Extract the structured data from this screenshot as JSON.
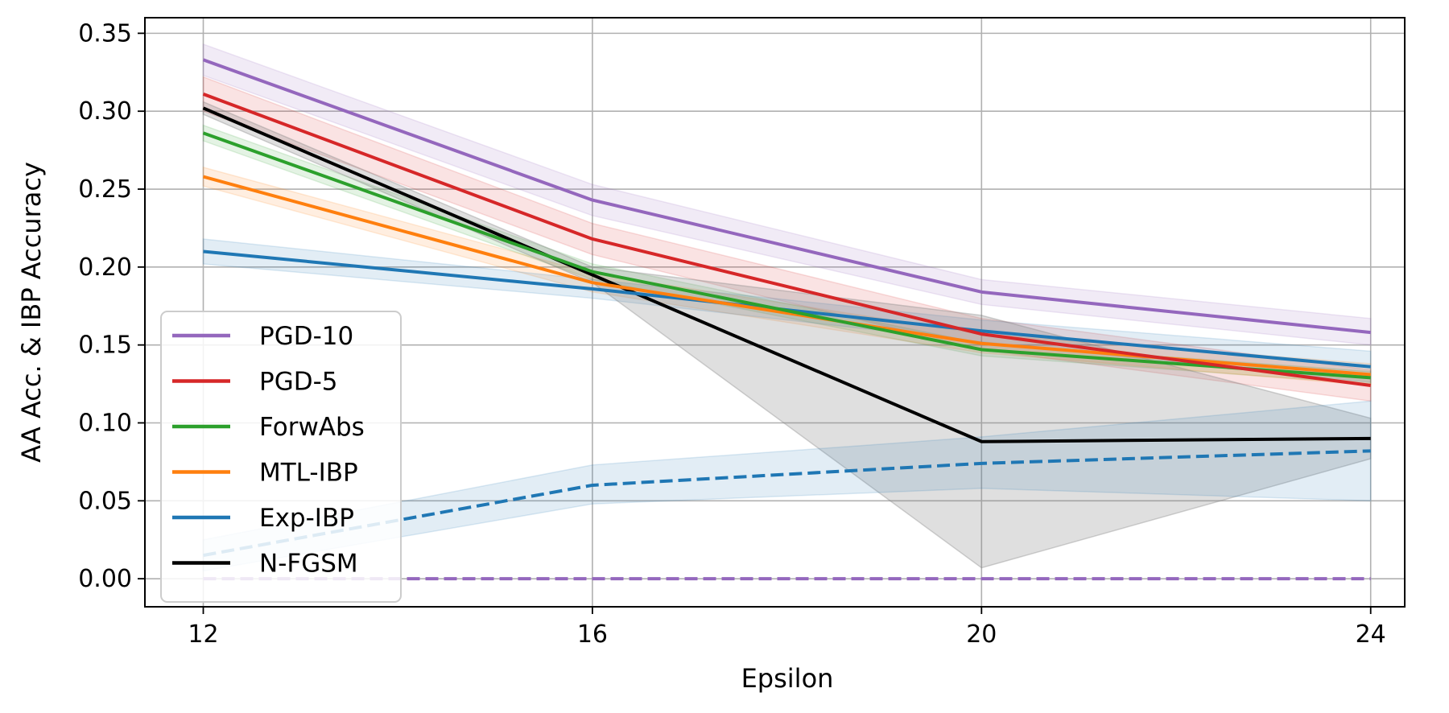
{
  "chart_data": {
    "type": "line",
    "xlabel": "Epsilon",
    "ylabel": "AA Acc. & IBP Accuracy",
    "x": [
      12,
      16,
      20,
      24
    ],
    "x_ticks": [
      "12",
      "16",
      "20",
      "24"
    ],
    "xlim": [
      11.4,
      24.35
    ],
    "ylim": [
      -0.018,
      0.36
    ],
    "y_ticks": [
      "0.00",
      "0.05",
      "0.10",
      "0.15",
      "0.20",
      "0.25",
      "0.30",
      "0.35"
    ],
    "grid": true,
    "legend_position": "lower-left",
    "series": [
      {
        "name": "PGD-10",
        "color": "#9467bd",
        "style": "solid",
        "values": [
          0.333,
          0.243,
          0.184,
          0.158
        ],
        "lower": [
          0.323,
          0.233,
          0.176,
          0.15
        ],
        "upper": [
          0.343,
          0.253,
          0.192,
          0.167
        ]
      },
      {
        "name": "PGD-5",
        "color": "#d62728",
        "style": "solid",
        "values": [
          0.311,
          0.218,
          0.157,
          0.124
        ],
        "lower": [
          0.3,
          0.208,
          0.147,
          0.114
        ],
        "upper": [
          0.322,
          0.228,
          0.167,
          0.134
        ]
      },
      {
        "name": "ForwAbs",
        "color": "#2ca02c",
        "style": "solid",
        "values": [
          0.286,
          0.197,
          0.147,
          0.129
        ],
        "lower": [
          0.281,
          0.192,
          0.143,
          0.125
        ],
        "upper": [
          0.291,
          0.202,
          0.151,
          0.133
        ]
      },
      {
        "name": "MTL-IBP",
        "color": "#ff7f0e",
        "style": "solid",
        "values": [
          0.258,
          0.19,
          0.151,
          0.131
        ],
        "lower": [
          0.252,
          0.184,
          0.145,
          0.124
        ],
        "upper": [
          0.264,
          0.196,
          0.157,
          0.138
        ]
      },
      {
        "name": "Exp-IBP",
        "color": "#1f77b4",
        "style": "solid",
        "values": [
          0.21,
          0.186,
          0.159,
          0.136
        ],
        "lower": [
          0.202,
          0.18,
          0.152,
          0.126
        ],
        "upper": [
          0.218,
          0.192,
          0.166,
          0.146
        ]
      },
      {
        "name": "N-FGSM",
        "color": "#000000",
        "style": "solid",
        "values": [
          0.302,
          0.195,
          0.088,
          0.09
        ],
        "lower": [
          0.298,
          0.19,
          0.007,
          0.077
        ],
        "upper": [
          0.306,
          0.2,
          0.169,
          0.103
        ]
      },
      {
        "name": "Exp-IBP",
        "color": "#1f77b4",
        "style": "dashed",
        "in_legend": false,
        "values": [
          0.015,
          0.06,
          0.074,
          0.082
        ],
        "lower": [
          0.005,
          0.048,
          0.058,
          0.05
        ],
        "upper": [
          0.025,
          0.073,
          0.091,
          0.114
        ]
      },
      {
        "name": "PGD-10",
        "color": "#9467bd",
        "style": "dashed",
        "in_legend": false,
        "values": [
          0.0,
          0.0,
          0.0,
          0.0
        ]
      }
    ]
  }
}
